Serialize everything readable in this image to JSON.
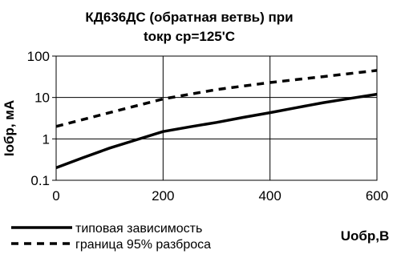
{
  "chart_data": {
    "type": "line",
    "title_line1": "КД636ДС (обратная ветвь) при",
    "title_line2": "tокр ср=125'C",
    "xlabel": "Uобр,В",
    "ylabel": "Iобр, мА",
    "xlim": [
      0,
      600
    ],
    "ylim": [
      0.1,
      100
    ],
    "y_scale": "log",
    "grid": "major",
    "x_ticks": [
      0,
      200,
      400,
      600
    ],
    "x_tick_labels": [
      "0",
      "200",
      "400",
      "600"
    ],
    "y_ticks": [
      0.1,
      1,
      10,
      100
    ],
    "y_tick_labels": [
      "0.1",
      "1",
      "10",
      "100"
    ],
    "legend_position": "bottom-left",
    "series": [
      {
        "name": "типовая зависимость",
        "style": "solid",
        "color": "#000000",
        "x": [
          0,
          50,
          100,
          150,
          200,
          250,
          300,
          350,
          400,
          450,
          500,
          550,
          600
        ],
        "y": [
          0.2,
          0.35,
          0.6,
          0.95,
          1.5,
          1.95,
          2.5,
          3.3,
          4.3,
          5.7,
          7.5,
          9.5,
          12
        ]
      },
      {
        "name": "граница 95% разброса",
        "style": "dashed",
        "color": "#000000",
        "x": [
          0,
          100,
          200,
          300,
          400,
          500,
          600
        ],
        "y": [
          2,
          4.3,
          9.2,
          15.5,
          23,
          32,
          45
        ]
      }
    ]
  }
}
